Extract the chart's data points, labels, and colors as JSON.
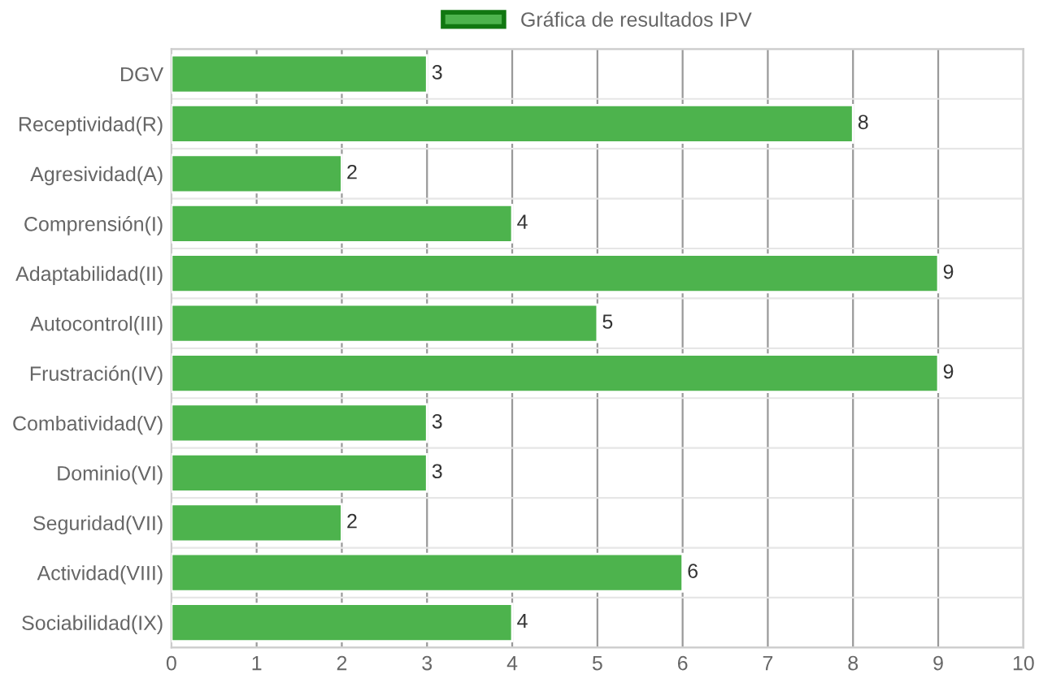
{
  "chart_data": {
    "type": "bar",
    "orientation": "horizontal",
    "categories": [
      "DGV",
      "Receptividad(R)",
      "Agresividad(A)",
      "Comprensión(I)",
      "Adaptabilidad(II)",
      "Autocontrol(III)",
      "Frustración(IV)",
      "Combatividad(V)",
      "Dominio(VI)",
      "Seguridad(VII)",
      "Actividad(VIII)",
      "Sociabilidad(IX)"
    ],
    "series": [
      {
        "name": "Gráfica de resultados IPV",
        "color": "#4db34d",
        "values": [
          3,
          8,
          2,
          4,
          9,
          5,
          9,
          3,
          3,
          2,
          6,
          4
        ]
      }
    ],
    "xlim": [
      0,
      10
    ],
    "xticks": [
      0,
      1,
      2,
      3,
      4,
      5,
      6,
      7,
      8,
      9,
      10
    ],
    "grid": true,
    "legend": "top",
    "data_labels": true
  }
}
